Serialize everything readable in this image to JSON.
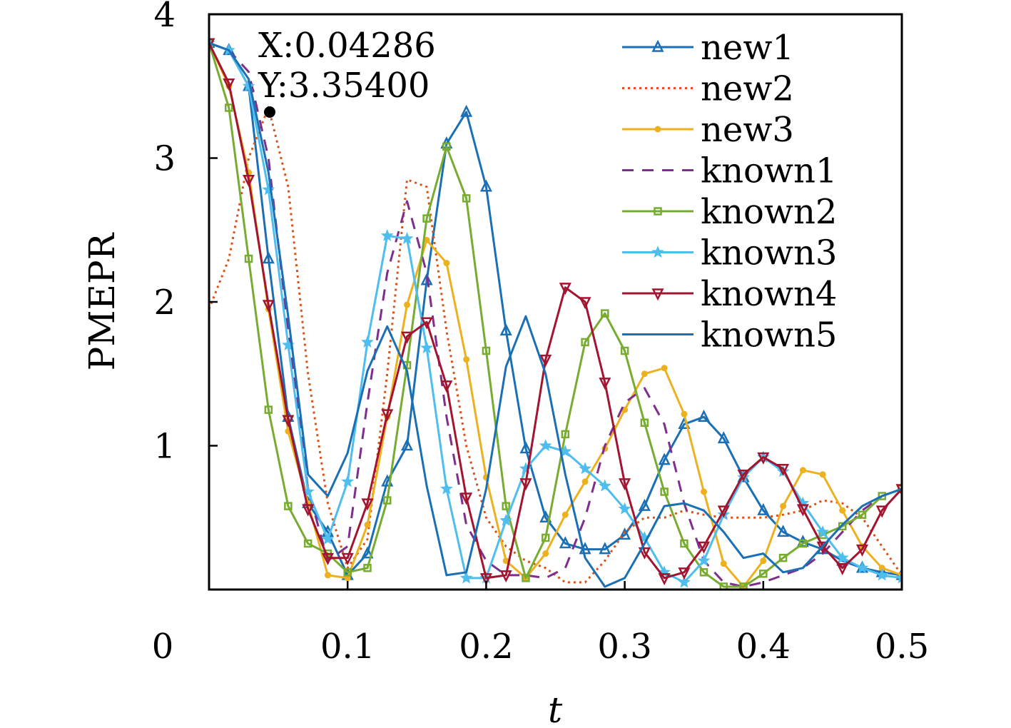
{
  "chart_data": {
    "type": "line",
    "xlabel": "t",
    "ylabel": "PMEPR",
    "xlim": [
      0,
      0.5
    ],
    "ylim": [
      0,
      4
    ],
    "xticks": [
      0,
      0.1,
      0.2,
      0.3,
      0.4,
      0.5
    ],
    "xtick_labels": [
      "0",
      "0.1",
      "0.2",
      "0.3",
      "0.4",
      "0.5"
    ],
    "yticks": [
      1,
      2,
      3,
      4
    ],
    "ytick_labels": [
      "1",
      "2",
      "3",
      "4"
    ],
    "legend_position": "top-right",
    "grid": false,
    "annotation": {
      "x_label": "X:0.04286",
      "y_label": "Y:3.35400",
      "point": [
        0.04286,
        3.354
      ]
    },
    "series": [
      {
        "name": "new1",
        "color": "#1a6fb5",
        "marker": "triangle-up",
        "dash": "",
        "x": [
          0.0,
          0.0143,
          0.0286,
          0.0429,
          0.0571,
          0.0714,
          0.0857,
          0.1,
          0.1143,
          0.1286,
          0.1429,
          0.1571,
          0.1714,
          0.1857,
          0.2,
          0.2143,
          0.2286,
          0.2429,
          0.2571,
          0.2714,
          0.2857,
          0.3,
          0.3143,
          0.3286,
          0.3429,
          0.3571,
          0.3714,
          0.3857,
          0.4,
          0.4143,
          0.4286,
          0.4429,
          0.4571,
          0.4714,
          0.4857,
          0.5
        ],
        "y": [
          3.8,
          3.75,
          3.5,
          2.3,
          1.2,
          0.6,
          0.4,
          0.1,
          0.25,
          0.75,
          1.0,
          2.15,
          3.1,
          3.32,
          2.8,
          1.8,
          0.98,
          0.5,
          0.32,
          0.28,
          0.28,
          0.38,
          0.58,
          0.9,
          1.15,
          1.2,
          1.05,
          0.78,
          0.55,
          0.4,
          0.33,
          0.28,
          0.2,
          0.15,
          0.12,
          0.1
        ]
      },
      {
        "name": "new2",
        "color": "#d95319",
        "marker": "none",
        "dash": "3,5",
        "x": [
          0.0,
          0.0143,
          0.0286,
          0.0429,
          0.0571,
          0.0714,
          0.0857,
          0.1,
          0.1143,
          0.1286,
          0.1429,
          0.1571,
          0.1714,
          0.1857,
          0.2,
          0.2143,
          0.2286,
          0.2429,
          0.2571,
          0.2714,
          0.2857,
          0.3,
          0.3143,
          0.3286,
          0.3429,
          0.3571,
          0.3714,
          0.3857,
          0.4,
          0.4143,
          0.4286,
          0.4429,
          0.4571,
          0.4714,
          0.4857,
          0.5
        ],
        "y": [
          1.95,
          2.3,
          3.0,
          3.354,
          2.8,
          1.5,
          0.6,
          0.15,
          0.35,
          1.5,
          2.85,
          2.8,
          1.8,
          1.0,
          0.5,
          0.3,
          0.2,
          0.15,
          0.05,
          0.05,
          0.2,
          0.4,
          0.5,
          0.5,
          0.55,
          0.52,
          0.5,
          0.5,
          0.5,
          0.52,
          0.55,
          0.62,
          0.6,
          0.5,
          0.3,
          0.1
        ]
      },
      {
        "name": "new3",
        "color": "#edb120",
        "marker": "circle",
        "dash": "",
        "x": [
          0.0,
          0.0143,
          0.0286,
          0.0429,
          0.0571,
          0.0714,
          0.0857,
          0.1,
          0.1143,
          0.1286,
          0.1429,
          0.1571,
          0.1714,
          0.1857,
          0.2,
          0.2143,
          0.2286,
          0.2429,
          0.2571,
          0.2714,
          0.2857,
          0.3,
          0.3143,
          0.3286,
          0.3429,
          0.3571,
          0.3714,
          0.3857,
          0.4,
          0.4143,
          0.4286,
          0.4429,
          0.4571,
          0.4714,
          0.4857,
          0.5
        ],
        "y": [
          3.8,
          3.5,
          2.9,
          1.95,
          1.1,
          0.6,
          0.1,
          0.08,
          0.45,
          1.2,
          1.98,
          2.43,
          2.27,
          1.6,
          0.78,
          0.2,
          0.08,
          0.25,
          0.52,
          0.75,
          0.98,
          1.25,
          1.5,
          1.54,
          1.22,
          0.68,
          0.18,
          0.02,
          0.2,
          0.58,
          0.83,
          0.8,
          0.55,
          0.3,
          0.15,
          0.1
        ]
      },
      {
        "name": "known1",
        "color": "#7e2f8e",
        "marker": "none",
        "dash": "16,12",
        "x": [
          0.0,
          0.0143,
          0.0286,
          0.0429,
          0.0571,
          0.0714,
          0.0857,
          0.1,
          0.1143,
          0.1286,
          0.1429,
          0.1571,
          0.1714,
          0.1857,
          0.2,
          0.2143,
          0.2286,
          0.2429,
          0.2571,
          0.2714,
          0.2857,
          0.3,
          0.3143,
          0.3286,
          0.3429,
          0.3571,
          0.3714,
          0.3857,
          0.4,
          0.4143,
          0.4286,
          0.4429,
          0.4571,
          0.4714,
          0.4857,
          0.5
        ],
        "y": [
          3.8,
          3.75,
          3.6,
          3.0,
          1.8,
          0.7,
          0.2,
          0.3,
          1.3,
          2.2,
          2.7,
          2.2,
          1.2,
          0.45,
          0.2,
          0.1,
          0.1,
          0.08,
          0.15,
          0.5,
          1.0,
          1.3,
          1.4,
          1.15,
          0.6,
          0.2,
          0.05,
          0.02,
          0.05,
          0.1,
          0.15,
          0.25,
          0.4,
          0.55,
          0.65,
          0.7
        ]
      },
      {
        "name": "known2",
        "color": "#77ac30",
        "marker": "square",
        "dash": "",
        "x": [
          0.0,
          0.0143,
          0.0286,
          0.0429,
          0.0571,
          0.0714,
          0.0857,
          0.1,
          0.1143,
          0.1286,
          0.1429,
          0.1571,
          0.1714,
          0.1857,
          0.2,
          0.2143,
          0.2286,
          0.2429,
          0.2571,
          0.2714,
          0.2857,
          0.3,
          0.3143,
          0.3286,
          0.3429,
          0.3571,
          0.3714,
          0.3857,
          0.4,
          0.4143,
          0.4286,
          0.4429,
          0.4571,
          0.4714,
          0.4857,
          0.5
        ],
        "y": [
          3.8,
          3.35,
          2.3,
          1.25,
          0.58,
          0.32,
          0.25,
          0.12,
          0.15,
          0.62,
          1.56,
          2.58,
          3.08,
          2.72,
          1.66,
          0.58,
          0.08,
          0.36,
          1.08,
          1.72,
          1.92,
          1.66,
          1.16,
          0.68,
          0.32,
          0.12,
          0.02,
          0.02,
          0.11,
          0.22,
          0.32,
          0.38,
          0.44,
          0.52,
          0.65,
          0.7
        ]
      },
      {
        "name": "known3",
        "color": "#4dbeee",
        "marker": "star",
        "dash": "",
        "x": [
          0.0,
          0.0143,
          0.0286,
          0.0429,
          0.0571,
          0.0714,
          0.0857,
          0.1,
          0.1143,
          0.1286,
          0.1429,
          0.1571,
          0.1714,
          0.1857,
          0.2,
          0.2143,
          0.2286,
          0.2429,
          0.2571,
          0.2714,
          0.2857,
          0.3,
          0.3143,
          0.3286,
          0.3429,
          0.3571,
          0.3714,
          0.3857,
          0.4,
          0.4143,
          0.4286,
          0.4429,
          0.4571,
          0.4714,
          0.4857,
          0.5
        ],
        "y": [
          3.8,
          3.75,
          3.5,
          2.78,
          1.7,
          0.68,
          0.35,
          0.75,
          1.72,
          2.46,
          2.44,
          1.68,
          0.7,
          0.08,
          0.08,
          0.48,
          0.84,
          1.0,
          0.96,
          0.84,
          0.72,
          0.56,
          0.36,
          0.12,
          0.05,
          0.2,
          0.52,
          0.78,
          0.92,
          0.82,
          0.6,
          0.4,
          0.22,
          0.15,
          0.1,
          0.08
        ]
      },
      {
        "name": "known4",
        "color": "#a2142f",
        "marker": "triangle-down",
        "dash": "",
        "x": [
          0.0,
          0.0143,
          0.0286,
          0.0429,
          0.0571,
          0.0714,
          0.0857,
          0.1,
          0.1143,
          0.1286,
          0.1429,
          0.1571,
          0.1714,
          0.1857,
          0.2,
          0.2143,
          0.2286,
          0.2429,
          0.2571,
          0.2714,
          0.2857,
          0.3,
          0.3143,
          0.3286,
          0.3429,
          0.3571,
          0.3714,
          0.3857,
          0.4,
          0.4143,
          0.4286,
          0.4429,
          0.4571,
          0.4714,
          0.4857,
          0.5
        ],
        "y": [
          3.8,
          3.52,
          2.85,
          1.98,
          1.18,
          0.56,
          0.22,
          0.22,
          0.6,
          1.22,
          1.76,
          1.86,
          1.42,
          0.64,
          0.08,
          0.1,
          0.74,
          1.6,
          2.1,
          2.0,
          1.44,
          0.74,
          0.26,
          0.08,
          0.12,
          0.3,
          0.55,
          0.8,
          0.92,
          0.84,
          0.56,
          0.3,
          0.15,
          0.28,
          0.55,
          0.7
        ]
      },
      {
        "name": "known5",
        "color": "#1a6fb5",
        "marker": "none",
        "dash": "",
        "x": [
          0.0,
          0.0143,
          0.0286,
          0.0429,
          0.0571,
          0.0714,
          0.0857,
          0.1,
          0.1143,
          0.1286,
          0.1429,
          0.1571,
          0.1714,
          0.1857,
          0.2,
          0.2143,
          0.2286,
          0.2429,
          0.2571,
          0.2714,
          0.2857,
          0.3,
          0.3143,
          0.3286,
          0.3429,
          0.3571,
          0.3714,
          0.3857,
          0.4,
          0.4143,
          0.4286,
          0.4429,
          0.4571,
          0.4714,
          0.4857,
          0.5
        ],
        "y": [
          3.8,
          3.75,
          3.55,
          2.9,
          1.9,
          0.8,
          0.65,
          0.95,
          1.52,
          1.83,
          1.52,
          0.72,
          0.1,
          0.12,
          0.7,
          1.55,
          1.9,
          1.5,
          0.8,
          0.22,
          0.02,
          0.08,
          0.32,
          0.58,
          0.6,
          0.55,
          0.4,
          0.22,
          0.25,
          0.12,
          0.15,
          0.3,
          0.45,
          0.58,
          0.65,
          0.7
        ]
      }
    ]
  }
}
